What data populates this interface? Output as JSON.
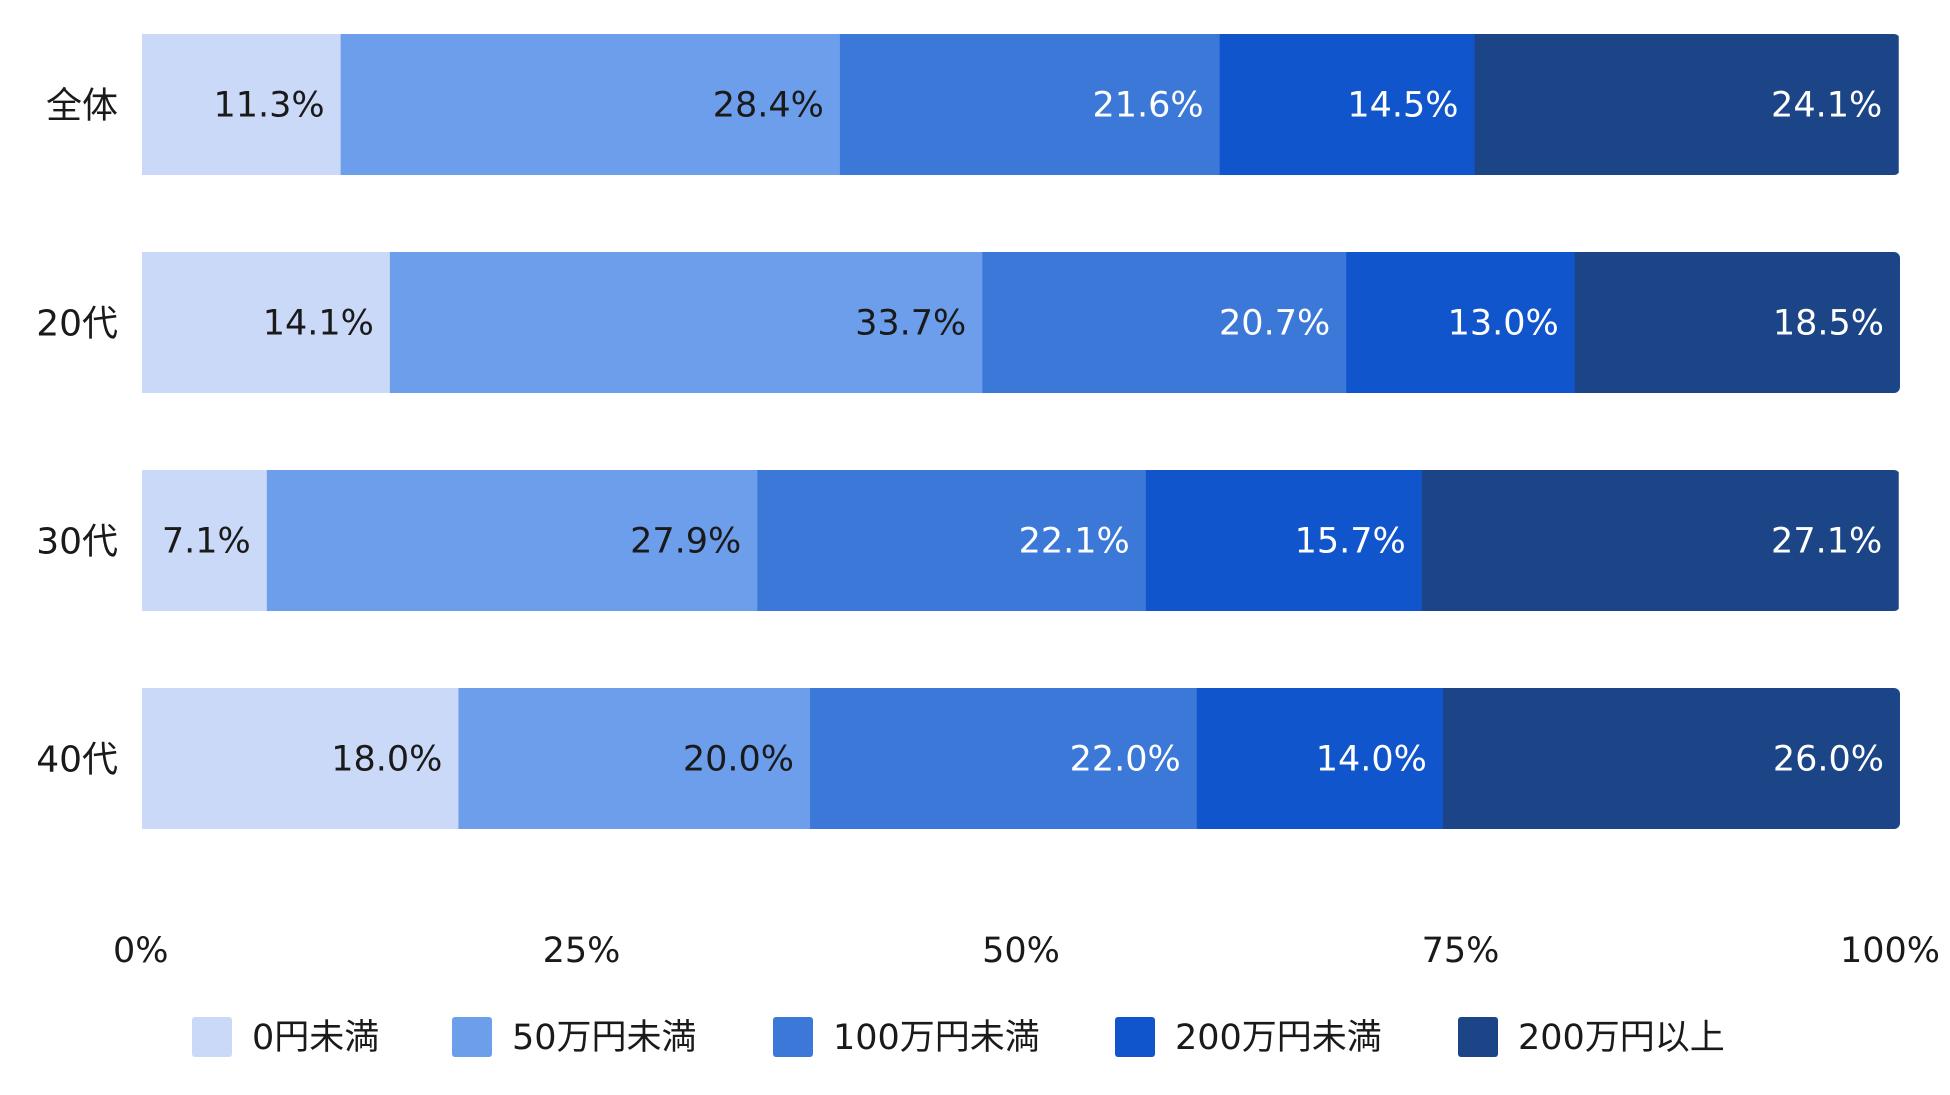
{
  "chart_data": {
    "type": "bar",
    "orientation": "horizontal",
    "stacked": true,
    "normalized": true,
    "title": "",
    "xlabel": "",
    "ylabel": "",
    "xlim": [
      0,
      100
    ],
    "categories": [
      "全体",
      "20代",
      "30代",
      "40代"
    ],
    "x_ticks": [
      "0%",
      "25%",
      "50%",
      "75%",
      "100%"
    ],
    "grid": false,
    "legend_position": "bottom",
    "value_format": "{v}%",
    "series": [
      {
        "name": "0円未満",
        "color": "#c9d9f7",
        "label_color": "#1a1a1a",
        "values": [
          11.3,
          14.1,
          7.1,
          18.0
        ]
      },
      {
        "name": "50万円未満",
        "color": "#6d9eeb",
        "label_color": "#1a1a1a",
        "values": [
          28.4,
          33.7,
          27.9,
          20.0
        ]
      },
      {
        "name": "100万円未満",
        "color": "#3c78d8",
        "label_color": "#ffffff",
        "values": [
          21.6,
          20.7,
          22.1,
          22.0
        ]
      },
      {
        "name": "200万円未満",
        "color": "#1155cc",
        "label_color": "#ffffff",
        "values": [
          14.5,
          13.0,
          15.7,
          14.0
        ]
      },
      {
        "name": "200万円以上",
        "color": "#1c4587",
        "label_color": "#ffffff",
        "values": [
          24.1,
          18.5,
          27.1,
          26.0
        ]
      }
    ]
  }
}
